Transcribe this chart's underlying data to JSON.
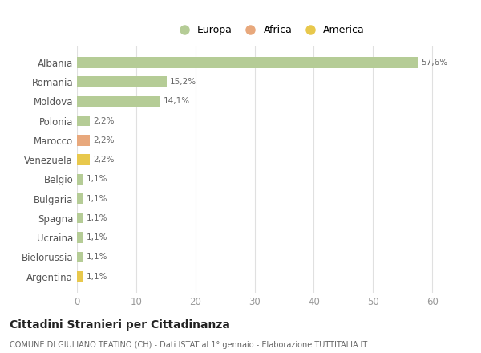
{
  "categories": [
    "Albania",
    "Romania",
    "Moldova",
    "Polonia",
    "Marocco",
    "Venezuela",
    "Belgio",
    "Bulgaria",
    "Spagna",
    "Ucraina",
    "Bielorussia",
    "Argentina"
  ],
  "values": [
    57.6,
    15.2,
    14.1,
    2.2,
    2.2,
    2.2,
    1.1,
    1.1,
    1.1,
    1.1,
    1.1,
    1.1
  ],
  "labels": [
    "57,6%",
    "15,2%",
    "14,1%",
    "2,2%",
    "2,2%",
    "2,2%",
    "1,1%",
    "1,1%",
    "1,1%",
    "1,1%",
    "1,1%",
    "1,1%"
  ],
  "colors": [
    "#b5cc96",
    "#b5cc96",
    "#b5cc96",
    "#b5cc96",
    "#e8a87c",
    "#e8c84c",
    "#b5cc96",
    "#b5cc96",
    "#b5cc96",
    "#b5cc96",
    "#b5cc96",
    "#e8c84c"
  ],
  "legend_labels": [
    "Europa",
    "Africa",
    "America"
  ],
  "legend_colors": [
    "#b5cc96",
    "#e8a87c",
    "#e8c84c"
  ],
  "title": "Cittadini Stranieri per Cittadinanza",
  "subtitle": "COMUNE DI GIULIANO TEATINO (CH) - Dati ISTAT al 1° gennaio - Elaborazione TUTTITALIA.IT",
  "xlim": [
    0,
    65
  ],
  "xticks": [
    0,
    10,
    20,
    30,
    40,
    50,
    60
  ],
  "background_color": "#ffffff",
  "grid_color": "#e0e0e0",
  "bar_height": 0.55
}
